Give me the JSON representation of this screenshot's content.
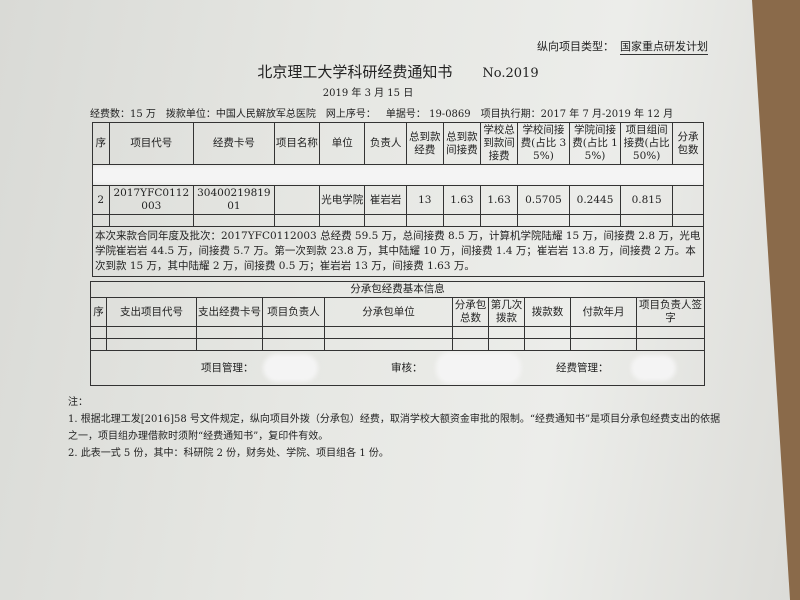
{
  "header": {
    "project_type_label": "纵向项目类型：",
    "project_type_value": "国家重点研发计划",
    "title": "北京理工大学科研经费通知书",
    "number": "No.2019",
    "date": "2019 年 3 月 15 日"
  },
  "info": {
    "amount": "经费数：15 万",
    "payer": "拨款单位：中国人民解放军总医院",
    "online_no": "网上序号：",
    "doc_no": "单据号：  19-0869",
    "period": "项目执行期：2017 年 7 月-2019 年 12 月"
  },
  "main_table": {
    "headers": [
      "序",
      "项目代号",
      "经费卡号",
      "项目名称",
      "单位",
      "负责人",
      "总到款经费",
      "总到款间接费",
      "学校总到款间接费",
      "学校间接费(占比 35%)",
      "学院间接费(占比 15%)",
      "项目组间接费(占比 50%)",
      "分承包数"
    ],
    "row": [
      "2",
      "2017YFC0112003",
      "3040021981901",
      "",
      "光电学院",
      "崔岩岩",
      "13",
      "1.63",
      "1.63",
      "0.5705",
      "0.2445",
      "0.815",
      ""
    ],
    "note": "本次来款合同年度及批次：2017YFC0112003 总经费 59.5 万，总间接费 8.5 万，计算机学院陆耀 15 万，间接费 2.8 万，光电学院崔岩岩 44.5 万，间接费 5.7 万。第一次到款 23.8 万，其中陆耀 10 万，间接费 1.4 万；崔岩岩 13.8 万，间接费 2 万。本次到款 15 万，其中陆耀 2 万，间接费 0.5 万；崔岩岩 13 万，间接费 1.63 万。"
  },
  "sub_table": {
    "title": "分承包经费基本信息",
    "headers": [
      "序",
      "支出项目代号",
      "支出经费卡号",
      "项目负责人",
      "分承包单位",
      "分承包总数",
      "第几次拨款",
      "拨款数",
      "付款年月",
      "项目负责人签字"
    ]
  },
  "signatures": {
    "project_mgmt": "项目管理：",
    "review": "审核：",
    "fund_mgmt": "经费管理："
  },
  "notes": {
    "heading": "注：",
    "item1": "1. 根据北理工发[2016]58 号文件规定，纵向项目外拨（分承包）经费，取消学校大额资金审批的限制。“经费通知书”是项目分承包经费支出的依据之一，项目组办理借款时须附“经费通知书”，复印件有效。",
    "item2": "2. 此表一式 5 份，其中：科研院 2 份，财务处、学院、项目组各 1 份。"
  }
}
